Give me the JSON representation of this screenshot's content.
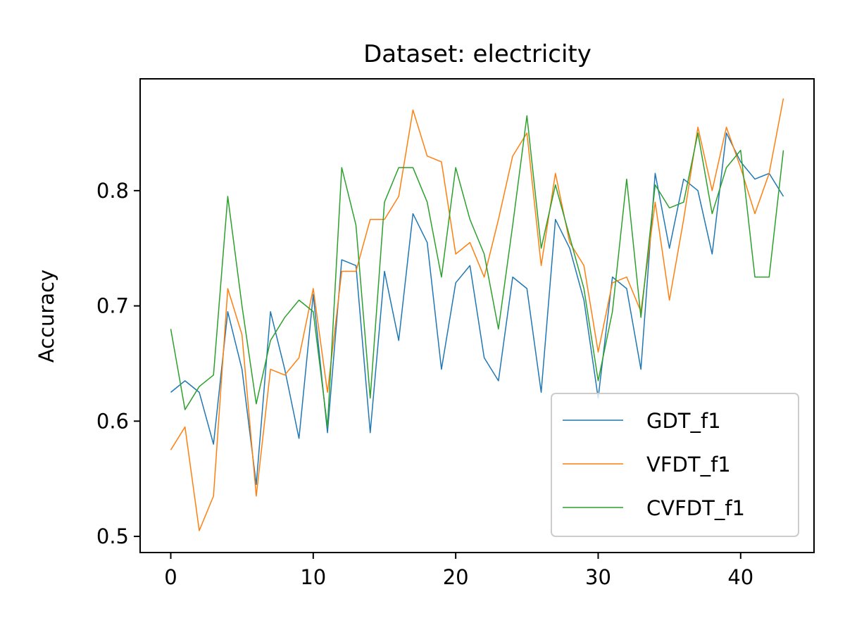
{
  "chart_data": {
    "type": "line",
    "title": "Dataset: electricity",
    "xlabel": "",
    "ylabel": "Accuracy",
    "xlim": [
      -2.15,
      45.15
    ],
    "ylim": [
      0.486,
      0.897
    ],
    "xticks": [
      0,
      10,
      20,
      30,
      40
    ],
    "xtick_labels": [
      "0",
      "10",
      "20",
      "30",
      "40"
    ],
    "yticks": [
      0.5,
      0.6,
      0.7,
      0.8
    ],
    "ytick_labels": [
      "0.5",
      "0.6",
      "0.7",
      "0.8"
    ],
    "grid": false,
    "legend_position": "lower-right",
    "x": [
      0,
      1,
      2,
      3,
      4,
      5,
      6,
      7,
      8,
      9,
      10,
      11,
      12,
      13,
      14,
      15,
      16,
      17,
      18,
      19,
      20,
      21,
      22,
      23,
      24,
      25,
      26,
      27,
      28,
      29,
      30,
      31,
      32,
      33,
      34,
      35,
      36,
      37,
      38,
      39,
      40,
      41,
      42,
      43
    ],
    "series": [
      {
        "name": "GDT_f1",
        "color": "#1f77b4",
        "values": [
          0.625,
          0.635,
          0.625,
          0.58,
          0.695,
          0.645,
          0.545,
          0.695,
          0.645,
          0.585,
          0.71,
          0.59,
          0.74,
          0.735,
          0.59,
          0.73,
          0.67,
          0.78,
          0.755,
          0.645,
          0.72,
          0.735,
          0.655,
          0.635,
          0.725,
          0.715,
          0.625,
          0.775,
          0.75,
          0.705,
          0.62,
          0.725,
          0.715,
          0.645,
          0.815,
          0.75,
          0.81,
          0.8,
          0.745,
          0.85,
          0.825,
          0.81,
          0.815,
          0.795
        ]
      },
      {
        "name": "VFDT_f1",
        "color": "#ff7f0e",
        "values": [
          0.575,
          0.595,
          0.505,
          0.535,
          0.715,
          0.675,
          0.535,
          0.645,
          0.64,
          0.655,
          0.715,
          0.625,
          0.73,
          0.73,
          0.775,
          0.775,
          0.795,
          0.87,
          0.83,
          0.825,
          0.745,
          0.755,
          0.725,
          0.775,
          0.83,
          0.85,
          0.735,
          0.815,
          0.755,
          0.735,
          0.66,
          0.72,
          0.725,
          0.695,
          0.79,
          0.705,
          0.775,
          0.855,
          0.8,
          0.855,
          0.82,
          0.78,
          0.815,
          0.88
        ]
      },
      {
        "name": "CVFDT_f1",
        "color": "#2ca02c",
        "values": [
          0.68,
          0.61,
          0.63,
          0.64,
          0.795,
          0.7,
          0.615,
          0.67,
          0.69,
          0.705,
          0.695,
          0.595,
          0.82,
          0.77,
          0.62,
          0.79,
          0.82,
          0.82,
          0.79,
          0.725,
          0.82,
          0.775,
          0.745,
          0.68,
          0.77,
          0.865,
          0.75,
          0.805,
          0.76,
          0.715,
          0.635,
          0.695,
          0.81,
          0.69,
          0.805,
          0.785,
          0.79,
          0.85,
          0.78,
          0.82,
          0.835,
          0.725,
          0.725,
          0.835
        ]
      }
    ]
  }
}
